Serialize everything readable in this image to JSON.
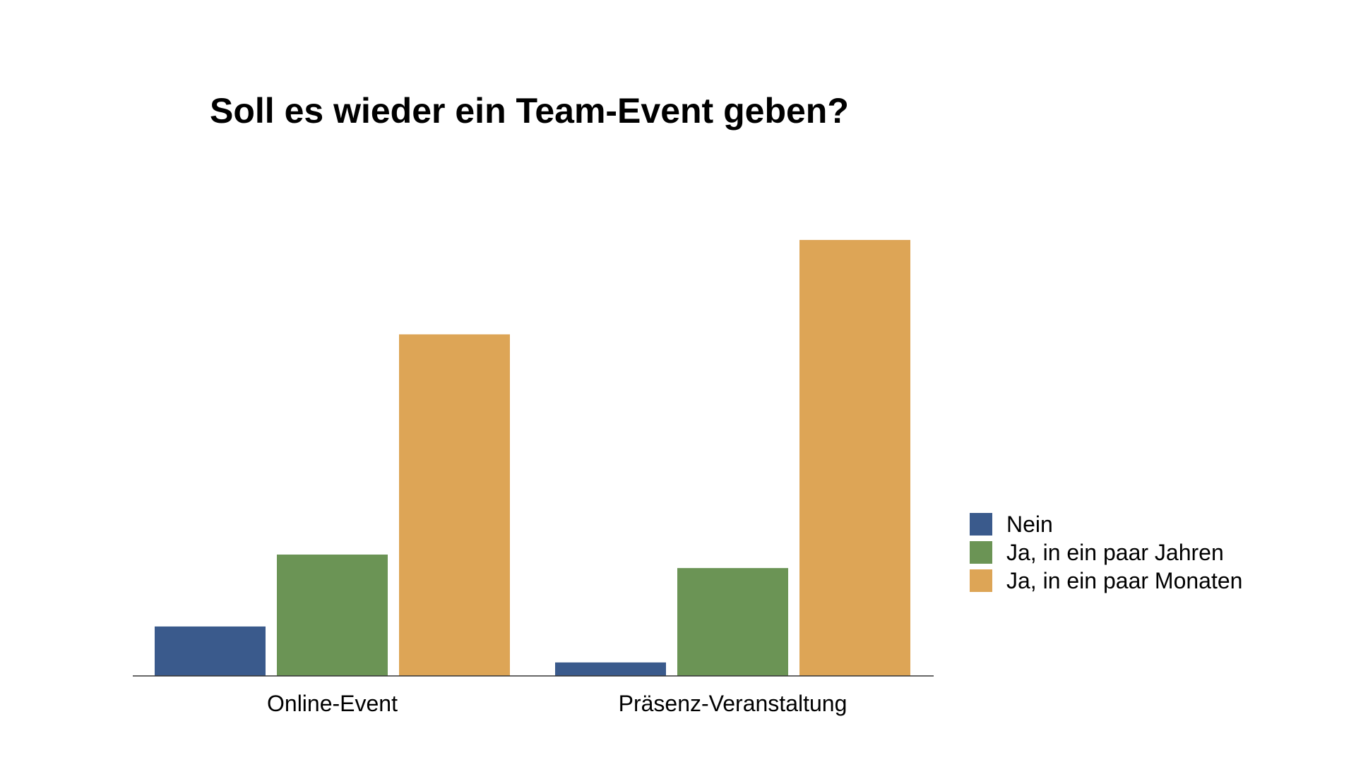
{
  "chart_data": {
    "type": "bar",
    "title": "Soll es wieder ein Team-Event geben?",
    "xlabel": "",
    "ylabel": "",
    "categories": [
      "Online-Event",
      "Präsenz-Veranstaltung"
    ],
    "series": [
      {
        "name": "Nein",
        "color": "#3a5a8c",
        "values": [
          1.1,
          0.3
        ]
      },
      {
        "name": "Ja, in ein paar Jahren",
        "color": "#6b9455",
        "values": [
          2.7,
          2.4
        ]
      },
      {
        "name": "Ja, in ein paar Monaten",
        "color": "#dda556",
        "values": [
          7.6,
          9.7
        ]
      }
    ],
    "ylim": [
      0,
      10
    ],
    "grid": false,
    "legend": "right"
  }
}
